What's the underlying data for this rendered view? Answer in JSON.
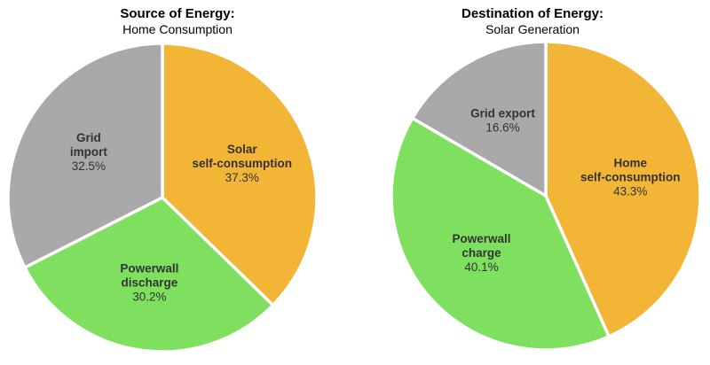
{
  "chart_data": [
    {
      "type": "pie",
      "title": "Source of Energy:",
      "subtitle": "Home Consumption",
      "slices": [
        {
          "label": [
            "Solar",
            "self-consumption"
          ],
          "value": 37.3,
          "value_text": "37.3%",
          "color": "#f2b535"
        },
        {
          "label": [
            "Powerwall",
            "discharge"
          ],
          "value": 30.2,
          "value_text": "30.2%",
          "color": "#7fe05f"
        },
        {
          "label": [
            "Grid",
            "import"
          ],
          "value": 32.5,
          "value_text": "32.5%",
          "color": "#a9a9a9"
        }
      ]
    },
    {
      "type": "pie",
      "title": "Destination of Energy:",
      "subtitle": "Solar Generation",
      "slices": [
        {
          "label": [
            "Home",
            "self-consumption"
          ],
          "value": 43.3,
          "value_text": "43.3%",
          "color": "#f2b535"
        },
        {
          "label": [
            "Powerwall",
            "charge"
          ],
          "value": 40.1,
          "value_text": "40.1%",
          "color": "#7fe05f"
        },
        {
          "label": [
            "Grid export"
          ],
          "value": 16.6,
          "value_text": "16.6%",
          "color": "#a9a9a9"
        }
      ]
    }
  ]
}
